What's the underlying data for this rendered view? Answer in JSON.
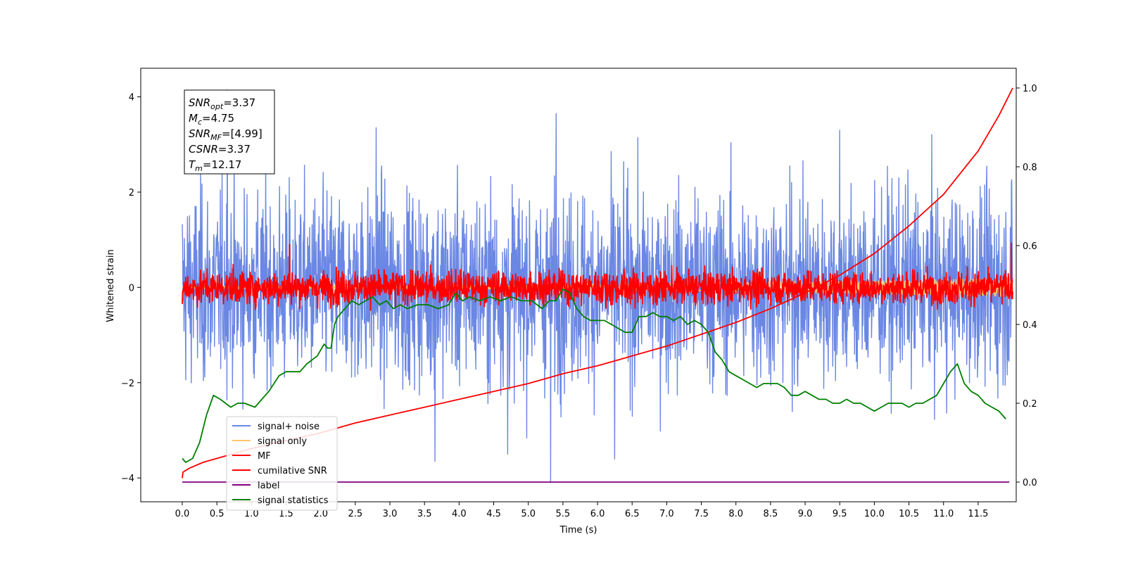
{
  "chart_data": {
    "type": "line",
    "title": "",
    "xlabel": "Time (s)",
    "ylabel": "Whitened strain",
    "xlim": [
      -0.6,
      12.05
    ],
    "ylim": [
      -4.5,
      4.6
    ],
    "y2lim": [
      -0.05,
      1.05
    ],
    "x_ticks": [
      "0.0",
      "0.5",
      "1.0",
      "1.5",
      "2.0",
      "2.5",
      "3.0",
      "3.5",
      "4.0",
      "4.5",
      "5.0",
      "5.5",
      "6.0",
      "6.5",
      "7.0",
      "7.5",
      "8.0",
      "8.5",
      "9.0",
      "9.5",
      "10.0",
      "10.5",
      "11.0",
      "11.5"
    ],
    "y_ticks": [
      "-4",
      "-2",
      "0",
      "2",
      "4"
    ],
    "y2_ticks": [
      "0.0",
      "0.2",
      "0.4",
      "0.6",
      "0.8",
      "1.0"
    ],
    "grid": false,
    "legend_position": "lower-left",
    "legend": [
      {
        "label": "signal+ noise",
        "color": "#6a87e3"
      },
      {
        "label": "signal only",
        "color": "#ffc66e"
      },
      {
        "label": "MF",
        "color": "#ff0000"
      },
      {
        "label": "cumilative SNR",
        "color": "#ff0000"
      },
      {
        "label": "label",
        "color": "#800080"
      },
      {
        "label": "signal statistics",
        "color": "#007f00"
      }
    ],
    "stats_box": [
      {
        "sym": "SNR",
        "sub": "opt",
        "value": "=3.37"
      },
      {
        "sym": "M",
        "sub": "c",
        "value": "=4.75"
      },
      {
        "sym": "SNR",
        "sub": "MF",
        "value": "=[4.99]"
      },
      {
        "sym": "CSNR",
        "sub": "",
        "value": "=3.37"
      },
      {
        "sym": "T",
        "sub": "m",
        "value": "=12.17"
      }
    ],
    "series": [
      {
        "name": "signal+ noise",
        "axis": "left",
        "color": "#6a87e3",
        "style": "noise",
        "x_range": [
          0,
          12.0
        ],
        "mean": 0.0,
        "std": 1.0,
        "peaks": [
          [
            0.65,
            4.15
          ],
          [
            5.4,
            3.65
          ],
          [
            2.8,
            3.35
          ],
          [
            9.5,
            3.3
          ],
          [
            5.32,
            -4.1
          ],
          [
            3.65,
            -3.65
          ],
          [
            6.25,
            -3.6
          ],
          [
            4.7,
            -3.5
          ]
        ]
      },
      {
        "name": "signal only",
        "axis": "left",
        "color": "#ffc66e",
        "style": "chirp",
        "x_range": [
          0,
          12.0
        ],
        "amplitude_start": 0.02,
        "amplitude_end": 0.2
      },
      {
        "name": "MF",
        "axis": "left",
        "color": "#ff0000",
        "style": "noise",
        "x_range": [
          0,
          12.0
        ],
        "mean": 0.0,
        "std": 0.17,
        "peaks": [
          [
            0.0,
            1.0
          ],
          [
            1.55,
            0.9
          ],
          [
            11.98,
            0.93
          ],
          [
            0.0,
            -0.35
          ]
        ]
      },
      {
        "name": "cumilative SNR",
        "axis": "right",
        "color": "#ff0000",
        "style": "line",
        "x": [
          0.0,
          0.01,
          0.1,
          0.3,
          0.5,
          1.0,
          1.5,
          2.0,
          2.5,
          3.0,
          3.5,
          4.0,
          4.5,
          5.0,
          5.5,
          6.0,
          6.5,
          7.0,
          7.5,
          8.0,
          8.5,
          9.0,
          9.5,
          10.0,
          10.5,
          11.0,
          11.5,
          11.8,
          12.0
        ],
        "y": [
          0.01,
          0.025,
          0.035,
          0.05,
          0.06,
          0.085,
          0.105,
          0.125,
          0.15,
          0.17,
          0.19,
          0.21,
          0.23,
          0.25,
          0.275,
          0.295,
          0.32,
          0.345,
          0.375,
          0.405,
          0.44,
          0.48,
          0.525,
          0.58,
          0.65,
          0.73,
          0.84,
          0.93,
          1.0
        ]
      },
      {
        "name": "label",
        "axis": "right",
        "color": "#800080",
        "style": "line",
        "x": [
          0.0,
          11.95
        ],
        "y": [
          0.0,
          0.0
        ]
      },
      {
        "name": "signal statistics",
        "axis": "right",
        "color": "#007f00",
        "style": "line",
        "x": [
          0.0,
          0.05,
          0.15,
          0.25,
          0.35,
          0.45,
          0.55,
          0.7,
          0.8,
          0.9,
          1.05,
          1.15,
          1.25,
          1.4,
          1.5,
          1.6,
          1.7,
          1.8,
          1.95,
          2.05,
          2.1,
          2.15,
          2.2,
          2.25,
          2.35,
          2.45,
          2.55,
          2.65,
          2.75,
          2.85,
          2.95,
          3.05,
          3.15,
          3.25,
          3.4,
          3.55,
          3.7,
          3.85,
          3.95,
          4.05,
          4.15,
          4.3,
          4.45,
          4.6,
          4.75,
          4.9,
          5.05,
          5.2,
          5.3,
          5.4,
          5.5,
          5.6,
          5.7,
          5.8,
          5.9,
          6.0,
          6.1,
          6.2,
          6.3,
          6.4,
          6.5,
          6.6,
          6.7,
          6.8,
          6.9,
          7.0,
          7.1,
          7.2,
          7.3,
          7.4,
          7.5,
          7.6,
          7.7,
          7.8,
          7.9,
          8.0,
          8.1,
          8.2,
          8.3,
          8.4,
          8.5,
          8.6,
          8.7,
          8.8,
          8.9,
          9.0,
          9.1,
          9.2,
          9.3,
          9.4,
          9.5,
          9.6,
          9.7,
          9.8,
          9.9,
          10.0,
          10.1,
          10.2,
          10.3,
          10.4,
          10.5,
          10.6,
          10.7,
          10.8,
          10.9,
          11.0,
          11.1,
          11.2,
          11.3,
          11.4,
          11.5,
          11.6,
          11.7,
          11.8,
          11.9
        ],
        "y": [
          0.06,
          0.05,
          0.06,
          0.1,
          0.17,
          0.22,
          0.21,
          0.19,
          0.2,
          0.2,
          0.19,
          0.21,
          0.23,
          0.27,
          0.28,
          0.28,
          0.28,
          0.3,
          0.32,
          0.35,
          0.34,
          0.34,
          0.4,
          0.42,
          0.44,
          0.46,
          0.45,
          0.46,
          0.47,
          0.45,
          0.46,
          0.44,
          0.45,
          0.44,
          0.45,
          0.45,
          0.44,
          0.45,
          0.48,
          0.46,
          0.47,
          0.46,
          0.47,
          0.46,
          0.47,
          0.46,
          0.46,
          0.44,
          0.46,
          0.46,
          0.49,
          0.48,
          0.44,
          0.42,
          0.41,
          0.41,
          0.41,
          0.4,
          0.39,
          0.38,
          0.38,
          0.42,
          0.42,
          0.43,
          0.42,
          0.42,
          0.41,
          0.42,
          0.4,
          0.41,
          0.4,
          0.38,
          0.33,
          0.31,
          0.28,
          0.27,
          0.26,
          0.25,
          0.24,
          0.25,
          0.25,
          0.25,
          0.24,
          0.22,
          0.22,
          0.23,
          0.22,
          0.21,
          0.21,
          0.2,
          0.2,
          0.21,
          0.2,
          0.2,
          0.19,
          0.18,
          0.19,
          0.2,
          0.2,
          0.2,
          0.19,
          0.2,
          0.2,
          0.21,
          0.22,
          0.25,
          0.28,
          0.3,
          0.25,
          0.23,
          0.22,
          0.2,
          0.19,
          0.18,
          0.16
        ]
      }
    ]
  }
}
